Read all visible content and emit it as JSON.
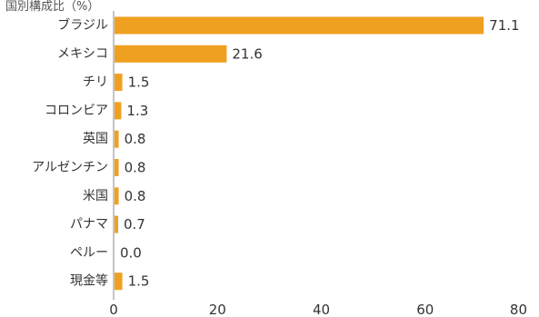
{
  "chart_data": {
    "type": "bar",
    "orientation": "horizontal",
    "title": "国別構成比（%）",
    "categories": [
      "ブラジル",
      "メキシコ",
      "チリ",
      "コロンビア",
      "英国",
      "アルゼンチン",
      "米国",
      "パナマ",
      "ペルー",
      "現金等"
    ],
    "values": [
      71.1,
      21.6,
      1.5,
      1.3,
      0.8,
      0.8,
      0.8,
      0.7,
      0.0,
      1.5
    ],
    "value_labels": [
      "71.1",
      "21.6",
      "1.5",
      "1.3",
      "0.8",
      "0.8",
      "0.8",
      "0.7",
      "0.0",
      "1.5"
    ],
    "xlim": [
      0,
      80
    ],
    "xticks": [
      "0",
      "20",
      "40",
      "60",
      "80"
    ],
    "grid": false,
    "bar_color": "#f0a020"
  }
}
